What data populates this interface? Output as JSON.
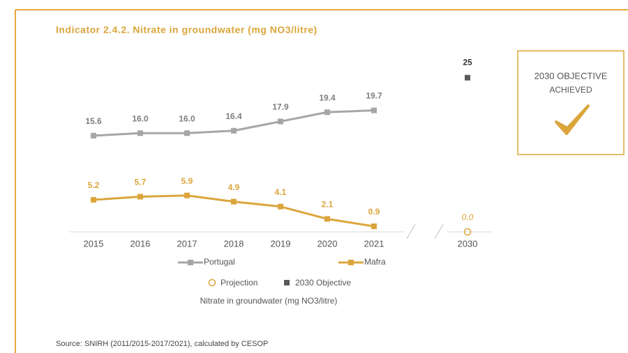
{
  "chart_data": {
    "type": "line",
    "title": "Indicator 2.4.2. Nitrate in groundwater (mg NO3/litre)",
    "categories": [
      "2015",
      "2016",
      "2017",
      "2018",
      "2019",
      "2020",
      "2021",
      "2030"
    ],
    "series": [
      {
        "name": "Portugal",
        "color": "#a6a6a6",
        "values": [
          15.6,
          16.0,
          16.0,
          16.4,
          17.9,
          19.4,
          19.7,
          null
        ],
        "value_labels": [
          "15.6",
          "16.0",
          "16.0",
          "16.4",
          "17.9",
          "19.4",
          "19.7",
          null
        ]
      },
      {
        "name": "Mafra",
        "color": "#dba53b",
        "values": [
          5.2,
          5.7,
          5.9,
          4.9,
          4.1,
          2.1,
          0.9,
          null
        ],
        "value_labels": [
          "5.2",
          "5.7",
          "5.9",
          "4.9",
          "4.1",
          "2.1",
          "0.9",
          null
        ]
      }
    ],
    "projection": {
      "name": "Projection",
      "color": "#dba53b",
      "value": 0,
      "value_label": "0.0"
    },
    "objective": {
      "name": "2030 Objective",
      "color": "#595959",
      "value": 25
    },
    "ylim": [
      0,
      28
    ],
    "caption": "Nitrate in groundwater (mg NO3/litre)",
    "badge": [
      "2030 OBJECTIVE",
      "ACHIEVED"
    ],
    "source": "Source: SNIRH (2011/2015-2017/2021), calculated by CESOP"
  }
}
